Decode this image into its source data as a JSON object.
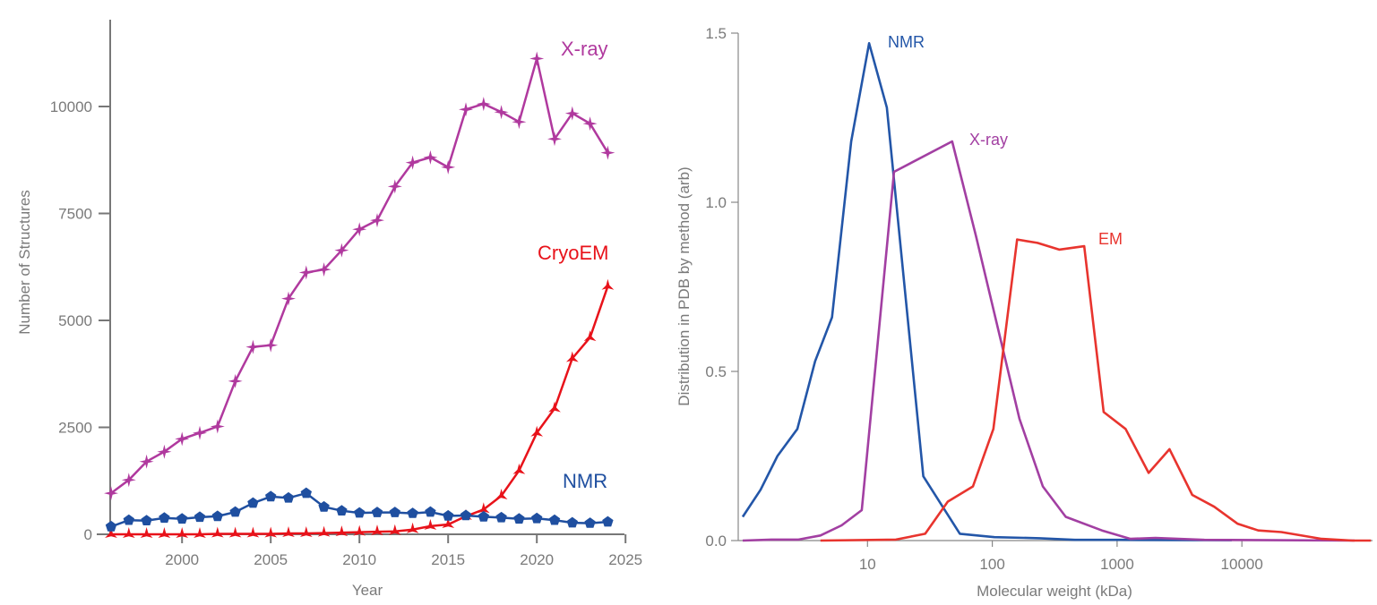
{
  "chart_data": [
    {
      "type": "line",
      "title": "",
      "xlabel": "Year",
      "ylabel": "Number of Structures",
      "xlim": [
        1996,
        2025
      ],
      "ylim": [
        0,
        12000
      ],
      "xticks": [
        2000,
        2005,
        2010,
        2015,
        2020,
        2025
      ],
      "yticks": [
        0,
        2500,
        5000,
        7500,
        10000
      ],
      "grid": false,
      "x": [
        1996,
        1997,
        1998,
        1999,
        2000,
        2001,
        2002,
        2003,
        2004,
        2005,
        2006,
        2007,
        2008,
        2009,
        2010,
        2011,
        2012,
        2013,
        2014,
        2015,
        2016,
        2017,
        2018,
        2019,
        2020,
        2021,
        2022,
        2023,
        2024
      ],
      "series": [
        {
          "name": "X-ray",
          "color": "#b0399e",
          "marker": "star4",
          "values": [
            960,
            1270,
            1700,
            1930,
            2230,
            2370,
            2520,
            3580,
            4380,
            4420,
            5510,
            6120,
            6190,
            6640,
            7130,
            7340,
            8130,
            8690,
            8810,
            8580,
            9930,
            10060,
            9870,
            9640,
            11120,
            9240,
            9840,
            9600,
            8920
          ]
        },
        {
          "name": "CryoEM",
          "color": "#e8121a",
          "marker": "star3",
          "values": [
            0,
            0,
            0,
            0,
            0,
            0,
            10,
            10,
            10,
            10,
            20,
            20,
            30,
            40,
            50,
            60,
            70,
            110,
            190,
            230,
            420,
            580,
            900,
            1490,
            2370,
            2940,
            4110,
            4600,
            5800
          ]
        },
        {
          "name": "NMR",
          "color": "#1f4fa0",
          "marker": "pentagon",
          "values": [
            180,
            330,
            320,
            380,
            360,
            400,
            420,
            520,
            730,
            880,
            850,
            960,
            640,
            550,
            500,
            510,
            510,
            490,
            520,
            430,
            440,
            410,
            390,
            360,
            370,
            330,
            270,
            260,
            290
          ]
        }
      ]
    },
    {
      "type": "line",
      "title": "",
      "xlabel": "Molecular weight (kDa)",
      "ylabel": "Distribution in PDB by method (arb)",
      "xscale": "log",
      "xlim": [
        1,
        110000
      ],
      "ylim": [
        0,
        1.5
      ],
      "xticks": [
        "10",
        "100",
        "1000",
        "10000"
      ],
      "yticks": [
        "0.0",
        "0.5",
        "1.0",
        "1.5"
      ],
      "grid": false,
      "series": [
        {
          "name": "NMR",
          "color": "#2356a8",
          "x": [
            1,
            1.39,
            1.9,
            2.74,
            3.8,
            5.2,
            7.4,
            10.3,
            14.3,
            28,
            55,
            104,
            240,
            460,
            1050,
            8300
          ],
          "y": [
            0.07,
            0.15,
            0.25,
            0.33,
            0.53,
            0.66,
            1.18,
            1.47,
            1.28,
            0.19,
            0.02,
            0.01,
            0.007,
            0.002,
            0.002,
            0.001
          ]
        },
        {
          "name": "X-ray",
          "color": "#a23fa2",
          "x": [
            1,
            1.7,
            2.8,
            4.2,
            6.2,
            9,
            16.3,
            47.7,
            74,
            165,
            254,
            388,
            756,
            1280,
            2030,
            5000,
            80000
          ],
          "y": [
            0,
            0.003,
            0.003,
            0.015,
            0.045,
            0.09,
            1.09,
            1.18,
            0.9,
            0.36,
            0.16,
            0.07,
            0.03,
            0.005,
            0.008,
            0.002,
            0
          ]
        },
        {
          "name": "EM",
          "color": "#e8342e",
          "x": [
            4.2,
            16.9,
            29,
            44,
            70,
            102,
            158,
            230,
            344,
            545,
            780,
            1170,
            1790,
            2630,
            4000,
            6000,
            9200,
            13500,
            20700,
            43600,
            77000,
            108000
          ],
          "y": [
            0,
            0.003,
            0.02,
            0.115,
            0.16,
            0.33,
            0.89,
            0.88,
            0.86,
            0.87,
            0.38,
            0.33,
            0.2,
            0.27,
            0.135,
            0.1,
            0.05,
            0.03,
            0.025,
            0.005,
            0,
            0
          ]
        }
      ]
    }
  ]
}
